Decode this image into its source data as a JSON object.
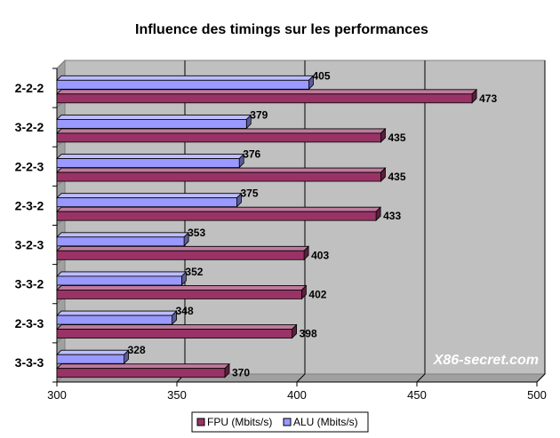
{
  "chart_data": {
    "type": "bar",
    "orientation": "horizontal",
    "title": "Influence des timings sur les performances",
    "categories": [
      "2-2-2",
      "3-2-2",
      "2-2-3",
      "2-3-2",
      "3-2-3",
      "3-3-2",
      "2-3-3",
      "3-3-3"
    ],
    "series": [
      {
        "name": "ALU (Mbits/s)",
        "values": [
          405,
          379,
          376,
          375,
          353,
          352,
          348,
          328
        ],
        "color": "#9999ff"
      },
      {
        "name": "FPU (Mbits/s)",
        "values": [
          473,
          435,
          435,
          433,
          403,
          402,
          398,
          370
        ],
        "color": "#993366"
      }
    ],
    "xlim": [
      300,
      500
    ],
    "xticks": [
      "300",
      "350",
      "400",
      "450",
      "500"
    ],
    "grid": true,
    "legend_position": "bottom",
    "legend": [
      {
        "label": "FPU (Mbits/s)",
        "color": "#993366"
      },
      {
        "label": "ALU (Mbits/s)",
        "color": "#9999ff"
      }
    ],
    "watermark": "X86-secret.com"
  }
}
